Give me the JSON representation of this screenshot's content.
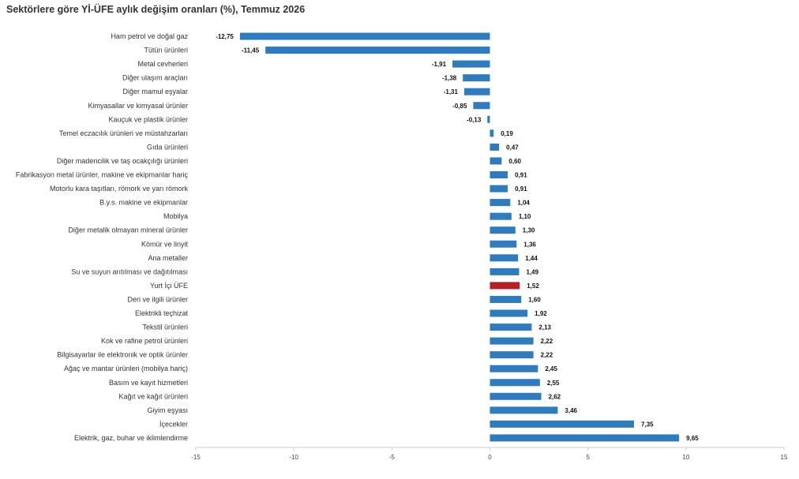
{
  "chart_data": {
    "type": "bar",
    "orientation": "horizontal",
    "title": "Sektörlere göre Yİ-ÜFE aylık değişim oranları (%), Temmuz 2026",
    "xlabel": "",
    "ylabel": "",
    "xlim": [
      -15,
      15
    ],
    "xticks": [
      -15,
      -10,
      -5,
      0,
      5,
      10,
      15
    ],
    "xtick_labels": [
      "-15",
      "-10",
      "-5",
      "0",
      "5",
      "10",
      "15"
    ],
    "grid": false,
    "legend": "none",
    "colors": {
      "default": "#2e7bbf",
      "highlight": "#b51f24"
    },
    "highlight_category": "Yurt İçi ÜFE",
    "categories": [
      "Ham petrol ve doğal gaz",
      "Tütün ürünleri",
      "Metal cevherleri",
      "Diğer ulaşım araçları",
      "Diğer mamul eşyalar",
      "Kimyasallar ve kimyasal ürünler",
      "Kauçuk ve plastik ürünler",
      "Temel eczacılık ürünleri ve müstahzarları",
      "Gıda ürünleri",
      "Diğer madencilik ve taş ocakçılığı ürünleri",
      "Fabrikasyon metal ürünler, makine ve ekipmanlar hariç",
      "Motorlu kara taşıtları, römork ve yarı römork",
      "B.y.s. makine ve ekipmanlar",
      "Mobilya",
      "Diğer metalik olmayan mineral ürünler",
      "Kömür ve linyit",
      "Ana metaller",
      "Su ve suyun arıtılması ve dağıtılması",
      "Yurt İçi ÜFE",
      "Deri ve ilgili ürünler",
      "Elektrikli teçhizat",
      "Tekstil ürünleri",
      "Kok ve rafine petrol ürünleri",
      "Bilgisayarlar ile elektronik ve optik ürünler",
      "Ağaç ve mantar ürünleri (mobilya hariç)",
      "Basım ve kayıt hizmetleri",
      "Kağıt ve kağıt ürünleri",
      "Giyim eşyası",
      "İçecekler",
      "Elektrik, gaz, buhar ve iklimlendirme"
    ],
    "values": [
      -12.75,
      -11.45,
      -1.91,
      -1.38,
      -1.31,
      -0.85,
      -0.13,
      0.19,
      0.47,
      0.6,
      0.91,
      0.91,
      1.04,
      1.1,
      1.3,
      1.36,
      1.44,
      1.49,
      1.52,
      1.6,
      1.92,
      2.13,
      2.22,
      2.22,
      2.45,
      2.55,
      2.62,
      3.46,
      7.35,
      9.65
    ],
    "value_labels": [
      "-12,75",
      "-11,45",
      "-1,91",
      "-1,38",
      "-1,31",
      "-0,85",
      "-0,13",
      "0,19",
      "0,47",
      "0,60",
      "0,91",
      "0,91",
      "1,04",
      "1,10",
      "1,30",
      "1,36",
      "1,44",
      "1,49",
      "1,52",
      "1,60",
      "1,92",
      "2,13",
      "2,22",
      "2,22",
      "2,45",
      "2,55",
      "2,62",
      "3,46",
      "7,35",
      "9,65"
    ]
  }
}
